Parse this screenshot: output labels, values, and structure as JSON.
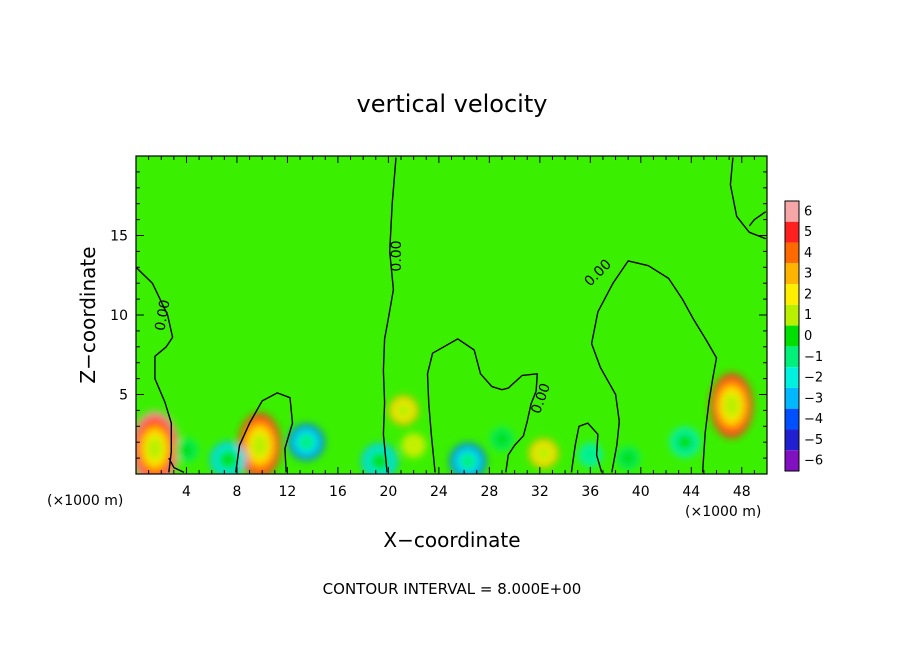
{
  "chart_data": {
    "type": "heatmap",
    "title": "vertical velocity",
    "xlabel": "X−coordinate",
    "ylabel": "Z−coordinate",
    "x_unit_left": "(×1000 m)",
    "x_unit_right": "(×1000 m)",
    "footer": "CONTOUR INTERVAL = 8.000E+00",
    "xlim": [
      0,
      50
    ],
    "ylim": [
      0,
      20
    ],
    "x_ticks": [
      4,
      8,
      12,
      16,
      20,
      24,
      28,
      32,
      36,
      40,
      44,
      48
    ],
    "x_tick_labels": [
      "4",
      "8",
      "12",
      "16",
      "20",
      "24",
      "28",
      "32",
      "36",
      "40",
      "44",
      "48"
    ],
    "y_ticks": [
      5,
      10,
      15
    ],
    "y_tick_labels": [
      "5",
      "10",
      "15"
    ],
    "contour_label": "0.00",
    "colorbar": {
      "levels": [
        6,
        5,
        4,
        3,
        2,
        1,
        0,
        -1,
        -2,
        -3,
        -4,
        -5,
        -6
      ],
      "labels": [
        "6",
        "5",
        "4",
        "3",
        "2",
        "1",
        "0",
        "−1",
        "−2",
        "−3",
        "−4",
        "−5",
        "−6"
      ],
      "colors": [
        "#f6a6a6",
        "#ff2020",
        "#ff6a00",
        "#ffb400",
        "#ffee00",
        "#b8f000",
        "#00e000",
        "#00f07a",
        "#00f0e0",
        "#00b8ff",
        "#0050ff",
        "#2020d0",
        "#8010c0"
      ]
    },
    "background_color": "#3af000",
    "features": [
      {
        "kind": "updraft",
        "x": 1.5,
        "z": 1.6,
        "value": 5.5
      },
      {
        "kind": "updraft",
        "x": 9.8,
        "z": 1.8,
        "value": 5.0
      },
      {
        "kind": "updraft",
        "x": 21.2,
        "z": 4.0,
        "value": 3.0
      },
      {
        "kind": "updraft",
        "x": 32.3,
        "z": 1.3,
        "value": 3.0
      },
      {
        "kind": "updraft",
        "x": 47.2,
        "z": 4.3,
        "value": 5.0
      },
      {
        "kind": "updraft",
        "x": 22.0,
        "z": 1.8,
        "value": 2.0
      },
      {
        "kind": "downdraft",
        "x": 13.5,
        "z": 2.0,
        "value": -4.0
      },
      {
        "kind": "downdraft",
        "x": 7.3,
        "z": 0.9,
        "value": -3.5
      },
      {
        "kind": "downdraft",
        "x": 19.3,
        "z": 0.8,
        "value": -3.5
      },
      {
        "kind": "downdraft",
        "x": 26.3,
        "z": 0.8,
        "value": -4.0
      },
      {
        "kind": "downdraft",
        "x": 43.5,
        "z": 2.0,
        "value": -2.5
      },
      {
        "kind": "downdraft",
        "x": 36.0,
        "z": 1.2,
        "value": -2.0
      },
      {
        "kind": "downdraft",
        "x": 4.0,
        "z": 1.5,
        "value": -1.5
      },
      {
        "kind": "downdraft",
        "x": 29.0,
        "z": 2.2,
        "value": -1.5
      },
      {
        "kind": "downdraft",
        "x": 39.0,
        "z": 1.0,
        "value": -1.5
      }
    ],
    "zero_contours": [
      [
        [
          0,
          13
        ],
        [
          1.3,
          12
        ],
        [
          2.5,
          10
        ],
        [
          2.9,
          8.6
        ],
        [
          2.4,
          8.0
        ],
        [
          1.5,
          7.4
        ],
        [
          1.5,
          6.0
        ],
        [
          2.3,
          4.5
        ],
        [
          2.8,
          3.2
        ],
        [
          2.8,
          1.4
        ],
        [
          2.6,
          0.1
        ]
      ],
      [
        [
          3.8,
          0.1
        ],
        [
          3.0,
          0.4
        ],
        [
          2.6,
          1.0
        ]
      ],
      [
        [
          7.9,
          0.1
        ],
        [
          8.2,
          1.8
        ],
        [
          9.0,
          3.2
        ],
        [
          10.0,
          4.6
        ],
        [
          11.2,
          5.1
        ],
        [
          12.2,
          4.8
        ],
        [
          12.4,
          3.2
        ],
        [
          11.8,
          1.6
        ],
        [
          11.9,
          0.1
        ]
      ],
      [
        [
          20.6,
          19.9
        ],
        [
          20.3,
          17.0
        ],
        [
          20.1,
          14.0
        ],
        [
          20.4,
          11.6
        ],
        [
          20.0,
          9.8
        ],
        [
          19.7,
          8.5
        ],
        [
          19.6,
          6.5
        ],
        [
          19.7,
          4.5
        ],
        [
          19.6,
          2.5
        ],
        [
          19.9,
          0.1
        ]
      ],
      [
        [
          23.7,
          0.1
        ],
        [
          23.4,
          2.5
        ],
        [
          23.2,
          4.4
        ],
        [
          23.1,
          6.3
        ],
        [
          23.5,
          7.6
        ],
        [
          25.5,
          8.5
        ],
        [
          26.8,
          7.8
        ],
        [
          27.3,
          6.3
        ],
        [
          28.2,
          5.5
        ],
        [
          29.0,
          5.3
        ],
        [
          29.5,
          5.4
        ],
        [
          30.6,
          6.2
        ],
        [
          31.8,
          6.3
        ],
        [
          31.7,
          5.2
        ],
        [
          31.3,
          4.4
        ],
        [
          31.0,
          3.3
        ],
        [
          30.7,
          2.4
        ],
        [
          30.0,
          1.8
        ],
        [
          29.5,
          1.2
        ],
        [
          29.3,
          0.1
        ]
      ],
      [
        [
          34.5,
          0.1
        ],
        [
          34.8,
          1.8
        ],
        [
          35.1,
          3.0
        ],
        [
          35.8,
          3.2
        ],
        [
          36.6,
          2.5
        ],
        [
          36.5,
          1.2
        ],
        [
          36.9,
          0.1
        ]
      ],
      [
        [
          37.7,
          0.1
        ],
        [
          38.1,
          1.8
        ],
        [
          38.3,
          3.3
        ],
        [
          38.0,
          5.0
        ],
        [
          36.8,
          6.7
        ],
        [
          36.1,
          8.2
        ],
        [
          36.6,
          10.2
        ],
        [
          37.8,
          12.0
        ],
        [
          39.0,
          13.4
        ],
        [
          40.6,
          13.1
        ],
        [
          42.2,
          12.3
        ],
        [
          43.3,
          11.0
        ],
        [
          44.2,
          9.7
        ],
        [
          45.2,
          8.4
        ],
        [
          46.0,
          7.3
        ],
        [
          45.7,
          6.0
        ],
        [
          45.4,
          4.5
        ],
        [
          45.1,
          2.6
        ],
        [
          44.9,
          0.1
        ]
      ],
      [
        [
          47.3,
          19.9
        ],
        [
          47.1,
          18.2
        ],
        [
          47.6,
          16.2
        ],
        [
          48.6,
          15.2
        ],
        [
          49.9,
          14.8
        ]
      ],
      [
        [
          49.9,
          16.5
        ],
        [
          49.0,
          16.0
        ],
        [
          48.6,
          15.6
        ]
      ]
    ]
  }
}
